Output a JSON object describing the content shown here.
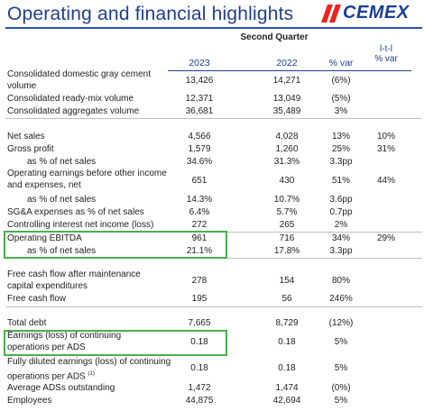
{
  "header": {
    "title": "Operating and financial highlights",
    "logo_text": "CEMEX",
    "period": "Second Quarter",
    "lfl_label_1": "l-t-l",
    "lfl_label_2": "% var",
    "col_2023": "2023",
    "col_2022": "2022",
    "col_var": "% var"
  },
  "colors": {
    "title": "#1f3f8f",
    "logo": "#1a3e9a",
    "logo_slash": "#e8251f",
    "highlight_box": "#4cae4c"
  },
  "rows": [
    {
      "label": "Consolidated domestic gray cement volume",
      "y2023": "13,426",
      "y2022": "14,271",
      "var": "(6%)",
      "lfl": ""
    },
    {
      "label": "Consolidated ready-mix volume",
      "y2023": "12,371",
      "y2022": "13,049",
      "var": "(5%)",
      "lfl": ""
    },
    {
      "label": "Consolidated aggregates volume",
      "y2023": "36,681",
      "y2022": "35,489",
      "var": "3%",
      "lfl": ""
    },
    {
      "label": "Net sales",
      "y2023": "4,566",
      "y2022": "4,028",
      "var": "13%",
      "lfl": "10%"
    },
    {
      "label": "Gross profit",
      "y2023": "1,579",
      "y2022": "1,260",
      "var": "25%",
      "lfl": "31%"
    },
    {
      "label": "as % of net sales",
      "y2023": "34.6%",
      "y2022": "31.3%",
      "var": "3.3pp",
      "lfl": ""
    },
    {
      "label": "Operating earnings before other income and expenses, net",
      "y2023": "651",
      "y2022": "430",
      "var": "51%",
      "lfl": "44%"
    },
    {
      "label": "as % of net sales",
      "y2023": "14.3%",
      "y2022": "10.7%",
      "var": "3.6pp",
      "lfl": ""
    },
    {
      "label": "SG&A expenses as % of net sales",
      "y2023": "6.4%",
      "y2022": "5.7%",
      "var": "0.7pp",
      "lfl": ""
    },
    {
      "label": "Controlling interest net income (loss)",
      "y2023": "272",
      "y2022": "265",
      "var": "2%",
      "lfl": ""
    },
    {
      "label": "Operating EBITDA",
      "y2023": "961",
      "y2022": "716",
      "var": "34%",
      "lfl": "29%"
    },
    {
      "label": "as % of net sales",
      "y2023": "21.1%",
      "y2022": "17.8%",
      "var": "3.3pp",
      "lfl": ""
    },
    {
      "label": "Free cash flow after maintenance capital expenditures",
      "y2023": "278",
      "y2022": "154",
      "var": "80%",
      "lfl": ""
    },
    {
      "label": "Free cash flow",
      "y2023": "195",
      "y2022": "56",
      "var": "246%",
      "lfl": ""
    },
    {
      "label": "Total debt",
      "y2023": "7,665",
      "y2022": "8,729",
      "var": "(12%)",
      "lfl": ""
    },
    {
      "label": "Earnings (loss) of continuing operations per ADS",
      "y2023": "0.18",
      "y2022": "0.18",
      "var": "5%",
      "lfl": ""
    },
    {
      "label": "Fully diluted earnings (loss) of continuing operations per ADS",
      "footnote": "(1)",
      "y2023": "0.18",
      "y2022": "0.18",
      "var": "5%",
      "lfl": ""
    },
    {
      "label": "Average ADSs outstanding",
      "y2023": "1,472",
      "y2022": "1,474",
      "var": "(0%)",
      "lfl": ""
    },
    {
      "label": "Employees",
      "y2023": "44,875",
      "y2022": "42,694",
      "var": "5%",
      "lfl": ""
    }
  ]
}
